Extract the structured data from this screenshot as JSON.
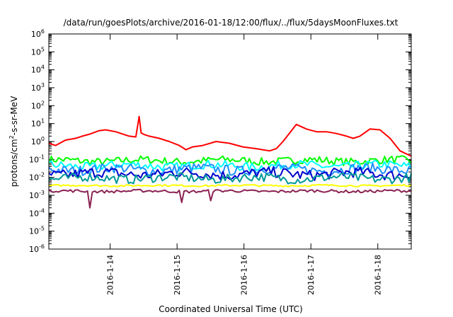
{
  "chart_data": {
    "type": "line",
    "title": "/data/run/goesPlots/archive/2016-01-18/12:00/flux/../flux/5daysMoonFluxes.txt",
    "xlabel": "Coordinated Universal Time (UTC)",
    "ylabel": {
      "prefix": "protons/cm",
      "sup": "2",
      "suffix": "-s-sr-MeV"
    },
    "yscale": "log",
    "ylim_exp": [
      -6,
      6
    ],
    "ytick_base": "10",
    "yticks_exp": [
      -6,
      -5,
      -4,
      -3,
      -2,
      -1,
      0,
      1,
      2,
      3,
      4,
      5,
      6
    ],
    "xlim": [
      "2016-01-13 02:00",
      "2016-01-18 12:00"
    ],
    "xticks": [
      "2016-1-14",
      "2016-1-15",
      "2016-1-16",
      "2016-1-17",
      "2016-1-18"
    ],
    "grid": false,
    "legend": "none",
    "series": [
      {
        "color": "#ff0000",
        "x_days": [
          0,
          0.1,
          0.25,
          0.4,
          0.5,
          0.6,
          0.75,
          0.85,
          1.0,
          1.2,
          1.3,
          1.35,
          1.38,
          1.42,
          1.5,
          1.65,
          1.8,
          1.95,
          2.05,
          2.15,
          2.3,
          2.5,
          2.7,
          2.9,
          3.1,
          3.3,
          3.4,
          3.5,
          3.6,
          3.7,
          3.85,
          4.0,
          4.15,
          4.3,
          4.45,
          4.55,
          4.65,
          4.8,
          4.95,
          5.1,
          5.25,
          5.42
        ],
        "values": [
          0.8,
          0.6,
          1.2,
          1.5,
          2.0,
          2.5,
          4.0,
          4.5,
          3.5,
          2.0,
          1.8,
          25,
          3.0,
          2.5,
          2.0,
          1.5,
          1.0,
          0.6,
          0.35,
          0.5,
          0.6,
          1.0,
          0.8,
          0.5,
          0.4,
          0.3,
          0.4,
          1.0,
          3.0,
          9.0,
          5.0,
          3.5,
          3.5,
          2.8,
          2.0,
          1.5,
          2.0,
          5.0,
          4.5,
          1.5,
          0.3,
          0.15
        ]
      },
      {
        "color": "#00ff00",
        "level": 0.085,
        "amplitude_decades": 0.22
      },
      {
        "color": "#00ffff",
        "level": 0.045,
        "amplitude_decades": 0.25
      },
      {
        "color": "#1e90ff",
        "level": 0.028,
        "amplitude_decades": 0.28
      },
      {
        "color": "#0000cc",
        "level": 0.016,
        "amplitude_decades": 0.3
      },
      {
        "color": "#009999",
        "level": 0.009,
        "amplitude_decades": 0.25
      },
      {
        "color": "#ffff00",
        "level": 0.0035,
        "amplitude_decades": 0.05
      },
      {
        "color": "#8b2252",
        "level": 0.0017,
        "amplitude_decades": 0.08,
        "spikes": [
          {
            "x_days": 0.62,
            "value": 0.0002
          },
          {
            "x_days": 1.98,
            "value": 0.0004
          },
          {
            "x_days": 2.42,
            "value": 0.0005
          }
        ]
      }
    ]
  }
}
